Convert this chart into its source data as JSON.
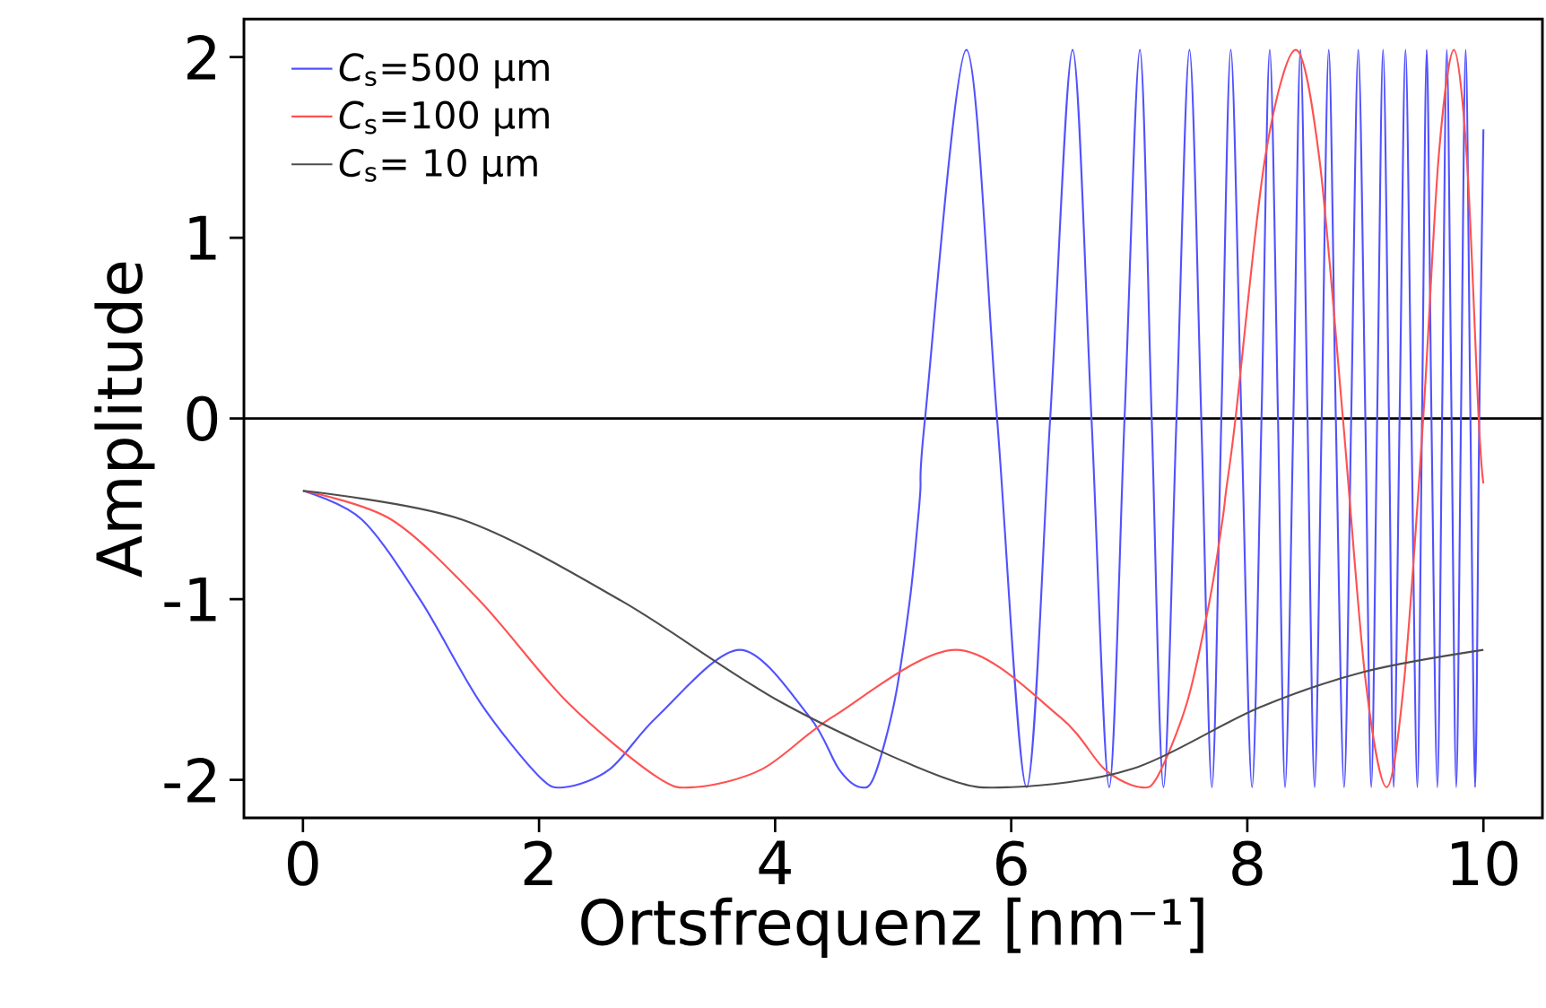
{
  "chart_data": {
    "type": "line",
    "xlabel": "Ortsfrequenz [nm⁻¹]",
    "ylabel": "Amplitude",
    "xlim": [
      -0.5,
      10.5
    ],
    "ylim": [
      -2.21,
      2.21
    ],
    "xticks": [
      0,
      2,
      4,
      6,
      8,
      10
    ],
    "yticks": [
      -2,
      -1,
      0,
      1,
      2
    ],
    "grid": false,
    "legend": "top left",
    "marker": "none",
    "line_style": "solid",
    "ref_lines": [
      {
        "axis": "y",
        "value": 0,
        "color": "#000000",
        "line_style": "solid"
      }
    ],
    "series": [
      {
        "name": "*C*$_{s}$=500 µm",
        "color": "#5252ff",
        "x": [
          0,
          0.5,
          1.0,
          1.5,
          2.0,
          2.22,
          2.6,
          3.0,
          3.7,
          4.29,
          4.54,
          4.72,
          4.84,
          5.01,
          5.14,
          5.21,
          5.23,
          5.27,
          5.62,
          5.88,
          6.13,
          6.33,
          6.52,
          6.68,
          6.83,
          6.96,
          7.09,
          7.19,
          7.29,
          7.4,
          7.51,
          7.61,
          7.7,
          7.78,
          7.86,
          7.95,
          8.04,
          8.12,
          8.19,
          8.26,
          8.32,
          8.39,
          8.45,
          8.51,
          8.57,
          8.63,
          8.69,
          8.75,
          8.82,
          8.88,
          8.94,
          9.0,
          9.05,
          9.1,
          9.15,
          9.2,
          9.24,
          9.29,
          9.34,
          9.39,
          9.44,
          9.48,
          9.52,
          9.56,
          9.61,
          9.65,
          9.69,
          9.73,
          9.77,
          9.81,
          9.85,
          9.89,
          9.93,
          9.965,
          10.0
        ],
        "values": [
          -0.4,
          -0.56,
          -1.01,
          -1.57,
          -1.98,
          -2.04,
          -1.94,
          -1.65,
          -1.28,
          -1.65,
          -1.94,
          -2.04,
          -1.98,
          -1.57,
          -1.01,
          -0.56,
          -0.4,
          0,
          2.04,
          0,
          -2.04,
          0,
          2.04,
          0,
          -2.04,
          0,
          2.04,
          0,
          -2.04,
          0,
          2.04,
          0,
          -2.04,
          0,
          2.04,
          0,
          -2.04,
          0,
          2.04,
          0,
          -2.04,
          0,
          2.04,
          0,
          -2.04,
          0,
          2.04,
          0,
          -2.04,
          0,
          2.04,
          0,
          -2.04,
          0,
          2.04,
          0,
          -2.04,
          0,
          2.04,
          0,
          -2.04,
          0,
          2.04,
          0,
          -2.04,
          0,
          2.04,
          0,
          -2.04,
          0,
          2.04,
          0,
          -2.04,
          0,
          1.6
        ]
      },
      {
        "name": "*C*$_{s}$=100 µm",
        "color": "#ff5252",
        "x": [
          0,
          0.75,
          1.5,
          2.24,
          2.99,
          3.32,
          3.89,
          4.49,
          5.53,
          6.41,
          6.79,
          7.09,
          7.24,
          7.49,
          7.68,
          7.79,
          7.82,
          7.9,
          8.15,
          8.41,
          8.61,
          8.81,
          9.0,
          9.18,
          9.33,
          9.49,
          9.62,
          9.75,
          9.86,
          9.96,
          10.0
        ],
        "values": [
          -0.4,
          -0.56,
          -1.01,
          -1.57,
          -1.98,
          -2.04,
          -1.94,
          -1.65,
          -1.28,
          -1.65,
          -1.94,
          -2.04,
          -1.98,
          -1.57,
          -1.01,
          -0.56,
          -0.4,
          0,
          1.44,
          2.04,
          1.44,
          0,
          -1.44,
          -2.04,
          -1.44,
          0,
          1.44,
          2.04,
          1.44,
          0,
          -0.36
        ]
      },
      {
        "name": "*C*$_{s}$=  10 µm",
        "color": "#4d4d4d",
        "x": [
          0,
          1.35,
          2.7,
          4.05,
          5.4,
          6.0,
          7.02,
          8.1,
          9.0,
          10.0
        ],
        "values": [
          -0.4,
          -0.56,
          -1.01,
          -1.57,
          -1.98,
          -2.04,
          -1.94,
          -1.6,
          -1.4,
          -1.28
        ]
      }
    ]
  }
}
